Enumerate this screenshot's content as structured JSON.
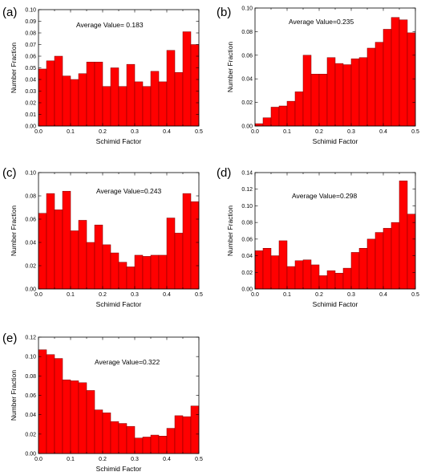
{
  "chart_data": [
    {
      "type": "bar",
      "panel": "(a)",
      "annotation": "Average Value= 0.183",
      "xlabel": "Schimid Factor",
      "ylabel": "Number Fraction",
      "xlim": [
        0,
        0.5
      ],
      "ylim": [
        0,
        0.1
      ],
      "x_ticks": [
        "0.0",
        "0.1",
        "0.2",
        "0.3",
        "0.4",
        "0.5"
      ],
      "y_ticks": [
        "0.00",
        "0.01",
        "0.02",
        "0.03",
        "0.04",
        "0.05",
        "0.06",
        "0.07",
        "0.08",
        "0.09",
        "0.10"
      ],
      "bar_color": "#ff0000",
      "bin_width": 0.025,
      "values": [
        0.049,
        0.056,
        0.06,
        0.043,
        0.04,
        0.045,
        0.055,
        0.055,
        0.034,
        0.05,
        0.034,
        0.053,
        0.038,
        0.034,
        0.047,
        0.038,
        0.065,
        0.046,
        0.081,
        0.07
      ]
    },
    {
      "type": "bar",
      "panel": "(b)",
      "annotation": "Average Value=0.235",
      "xlabel": "Schimid Factor",
      "ylabel": "Number Fraction",
      "xlim": [
        0,
        0.5
      ],
      "ylim": [
        0,
        0.1
      ],
      "x_ticks": [
        "0.0",
        "0.1",
        "0.2",
        "0.3",
        "0.4",
        "0.5"
      ],
      "y_ticks": [
        "0.00",
        "0.02",
        "0.04",
        "0.06",
        "0.08",
        "0.10"
      ],
      "bar_color": "#ff0000",
      "bin_width": 0.025,
      "values": [
        0.002,
        0.007,
        0.016,
        0.017,
        0.021,
        0.029,
        0.06,
        0.044,
        0.044,
        0.058,
        0.053,
        0.052,
        0.057,
        0.058,
        0.066,
        0.071,
        0.082,
        0.092,
        0.09,
        0.079
      ]
    },
    {
      "type": "bar",
      "panel": "(c)",
      "annotation": "Average Value=0.243",
      "xlabel": "Schimid Factor",
      "ylabel": "Number Fraction",
      "xlim": [
        0,
        0.5
      ],
      "ylim": [
        0,
        0.1
      ],
      "x_ticks": [
        "0.0",
        "0.1",
        "0.2",
        "0.3",
        "0.4",
        "0.5"
      ],
      "y_ticks": [
        "0.00",
        "0.02",
        "0.04",
        "0.06",
        "0.08",
        "0.10"
      ],
      "bar_color": "#ff0000",
      "bin_width": 0.025,
      "values": [
        0.065,
        0.082,
        0.068,
        0.084,
        0.05,
        0.059,
        0.04,
        0.055,
        0.038,
        0.031,
        0.023,
        0.019,
        0.029,
        0.028,
        0.029,
        0.029,
        0.061,
        0.048,
        0.082,
        0.075
      ]
    },
    {
      "type": "bar",
      "panel": "(d)",
      "annotation": "Average Value=0.298",
      "xlabel": "Schimid Factor",
      "ylabel": "Number Fraction",
      "xlim": [
        0,
        0.5
      ],
      "ylim": [
        0,
        0.14
      ],
      "x_ticks": [
        "0.0",
        "0.1",
        "0.2",
        "0.3",
        "0.4",
        "0.5"
      ],
      "y_ticks": [
        "0.00",
        "0.02",
        "0.04",
        "0.06",
        "0.08",
        "0.10",
        "0.12",
        "0.14"
      ],
      "bar_color": "#ff0000",
      "bin_width": 0.025,
      "values": [
        0.046,
        0.049,
        0.04,
        0.058,
        0.027,
        0.034,
        0.035,
        0.029,
        0.016,
        0.022,
        0.019,
        0.025,
        0.044,
        0.049,
        0.06,
        0.068,
        0.073,
        0.08,
        0.13,
        0.09
      ]
    },
    {
      "type": "bar",
      "panel": "(e)",
      "annotation": "Average Value=0.322",
      "xlabel": "Schimid Factor",
      "ylabel": "Number Fraction",
      "xlim": [
        0,
        0.5
      ],
      "ylim": [
        0,
        0.12
      ],
      "x_ticks": [
        "0.0",
        "0.1",
        "0.2",
        "0.3",
        "0.4",
        "0.5"
      ],
      "y_ticks": [
        "0.000",
        "0.020",
        "0.040",
        "0.060",
        "0.080",
        "0.100",
        "0.120"
      ],
      "y_tick_text": [
        "0.00",
        "0.02",
        "0.04",
        "0.06",
        "0.08",
        "0.10",
        "0.12"
      ],
      "bar_color": "#ff0000",
      "bin_width": 0.025,
      "values": [
        0.107,
        0.102,
        0.098,
        0.076,
        0.075,
        0.073,
        0.065,
        0.045,
        0.042,
        0.033,
        0.031,
        0.028,
        0.016,
        0.017,
        0.019,
        0.018,
        0.026,
        0.039,
        0.038,
        0.049
      ]
    }
  ]
}
